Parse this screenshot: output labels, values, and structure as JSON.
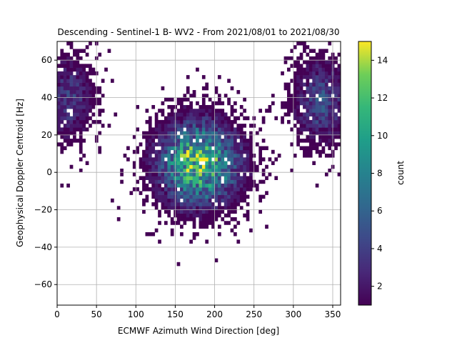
{
  "chart_data": {
    "type": "heatmap",
    "title": "Descending - Sentinel-1 B- WV2 - From 2021/08/01 to 2021/08/30",
    "xlabel": "ECMWF Azimuth Wind Direction [deg]",
    "ylabel": "Geophysical Doppler Centroid [Hz]",
    "xlim": [
      0,
      360
    ],
    "ylim": [
      -71,
      70
    ],
    "xticks": [
      0,
      50,
      100,
      150,
      200,
      250,
      300,
      350
    ],
    "yticks": [
      -60,
      -40,
      -20,
      0,
      20,
      40,
      60
    ],
    "grid": true,
    "colorbar": {
      "label": "count",
      "range": [
        1,
        15
      ],
      "ticks": [
        2,
        4,
        6,
        8,
        10,
        12,
        14
      ],
      "colormap": "viridis"
    },
    "bins": {
      "x_width_deg": 4,
      "y_height_hz": 2
    },
    "density_regions": [
      {
        "center_deg": 180,
        "center_hz": 5,
        "spread_deg": 32,
        "spread_hz": 14,
        "peak_count": 14
      },
      {
        "center_deg": 15,
        "center_hz": 40,
        "spread_deg": 20,
        "spread_hz": 14,
        "peak_count": 4
      },
      {
        "center_deg": 335,
        "center_hz": 38,
        "spread_deg": 22,
        "spread_hz": 14,
        "peak_count": 5
      }
    ]
  }
}
